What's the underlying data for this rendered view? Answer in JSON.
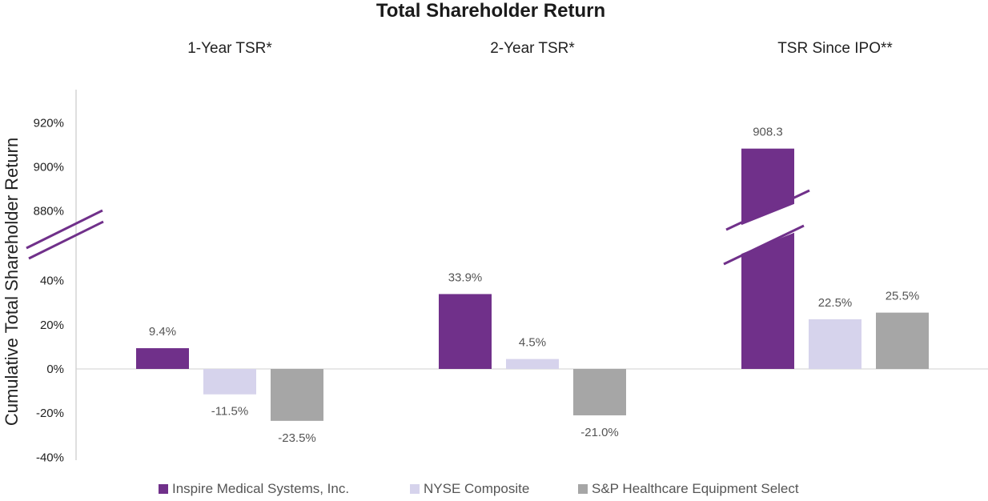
{
  "chart_data": {
    "type": "bar",
    "title": "Total Shareholder Return",
    "ylabel": "Cumulative Total Shareholder Return",
    "xlabel": "",
    "broken_axis": true,
    "ylim_lower": [
      -40,
      50
    ],
    "ylim_upper": [
      870,
      930
    ],
    "lower_ticks": [
      {
        "value": 40,
        "label": "40%"
      },
      {
        "value": 20,
        "label": "20%"
      },
      {
        "value": 0,
        "label": "0%"
      },
      {
        "value": -20,
        "label": "-20%"
      },
      {
        "value": -40,
        "label": "-40%"
      }
    ],
    "upper_ticks": [
      {
        "value": 920,
        "label": "920%"
      },
      {
        "value": 900,
        "label": "900%"
      },
      {
        "value": 880,
        "label": "880%"
      }
    ],
    "categories": [
      "1-Year TSR*",
      "2-Year TSR*",
      "TSR Since IPO**"
    ],
    "series": [
      {
        "name": "Inspire Medical Systems, Inc.",
        "color": "#70308a",
        "values": [
          9.4,
          33.9,
          908.3
        ],
        "labels": [
          "9.4%",
          "33.9%",
          "908.3"
        ]
      },
      {
        "name": "NYSE Composite",
        "color": "#d6d3ec",
        "values": [
          -11.5,
          4.5,
          22.5
        ],
        "labels": [
          "-11.5%",
          "4.5%",
          "22.5%"
        ]
      },
      {
        "name": "S&P Healthcare Equipment Select",
        "color": "#a6a6a6",
        "values": [
          -23.5,
          -21.0,
          25.5
        ],
        "labels": [
          "-23.5%",
          "-21.0%",
          "25.5%"
        ]
      }
    ],
    "legend_position": "bottom",
    "grid": false
  }
}
